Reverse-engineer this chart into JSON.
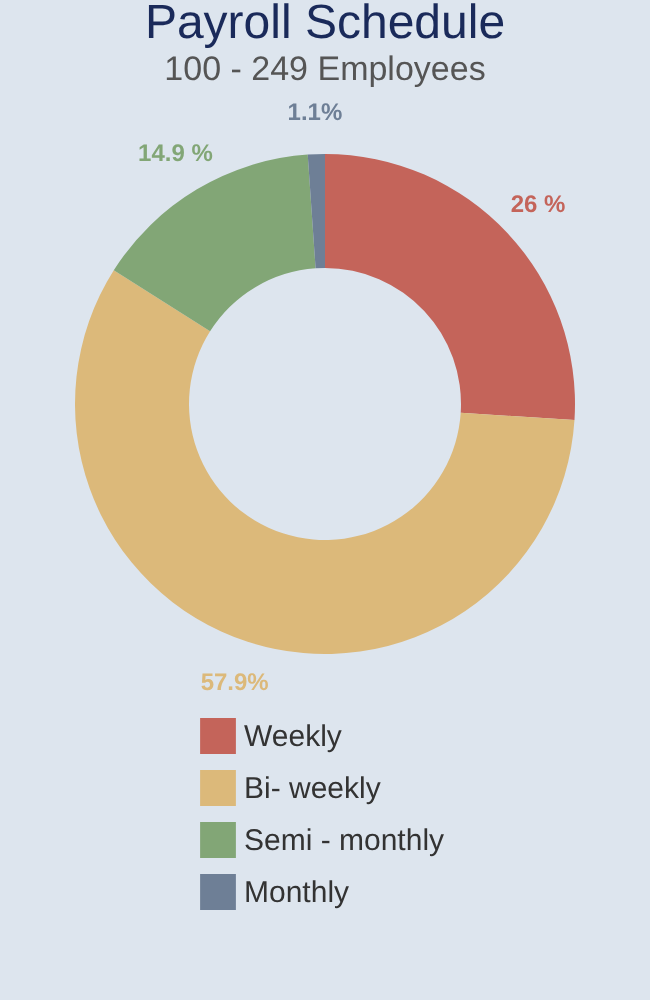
{
  "chart_data": {
    "type": "donut",
    "title": "Payroll Schedule",
    "subtitle": "100 - 249 Employees",
    "categories": [
      "Weekly",
      "Bi- weekly",
      "Semi - monthly",
      "Monthly"
    ],
    "values": [
      26,
      57.9,
      14.9,
      1.1
    ],
    "value_labels": [
      "26 %",
      "57.9%",
      "14.9 %",
      "1.1%"
    ],
    "colors": [
      "#c4645a",
      "#dcb97a",
      "#82a676",
      "#6e7f96"
    ],
    "legend": "bottom"
  }
}
